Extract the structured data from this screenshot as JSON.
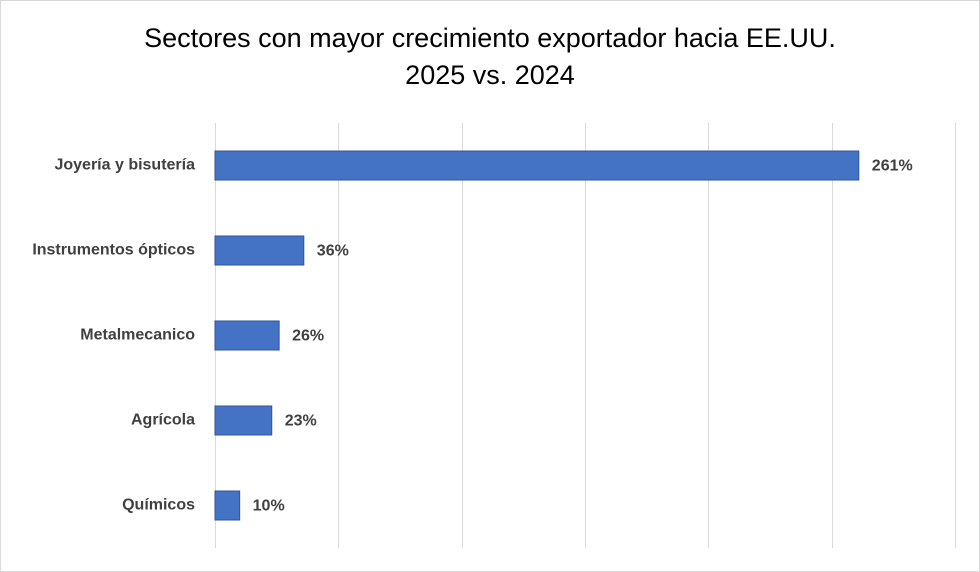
{
  "chart_data": {
    "type": "bar",
    "orientation": "horizontal",
    "title_line1": "Sectores con mayor crecimiento exportador hacia EE.UU.",
    "title_line2": "2025 vs. 2024",
    "categories": [
      "Joyería y bisutería",
      "Instrumentos ópticos",
      "Metalmecanico",
      "Agrícola",
      "Químicos"
    ],
    "values": [
      261,
      36,
      26,
      23,
      10
    ],
    "data_labels": [
      "261%",
      "36%",
      "26%",
      "23%",
      "10%"
    ],
    "xlim": [
      0,
      300
    ],
    "grid": true,
    "legend": "none",
    "bar_color": "#4472c4",
    "grid_color": "#d9d9d9",
    "label_color": "#404040"
  }
}
